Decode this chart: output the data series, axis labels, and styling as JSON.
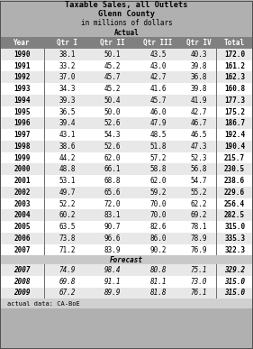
{
  "title_lines": [
    "Taxable Sales, all Outlets",
    "Glenn County",
    "in millions of dollars",
    "Actual"
  ],
  "header": [
    "Year",
    "Qtr I",
    "Qtr II",
    "Qtr III",
    "Qtr IV",
    "Total"
  ],
  "actual_data": [
    [
      "1990",
      "38.1",
      "50.1",
      "43.5",
      "40.3",
      "172.0"
    ],
    [
      "1991",
      "33.2",
      "45.2",
      "43.0",
      "39.8",
      "161.2"
    ],
    [
      "1992",
      "37.0",
      "45.7",
      "42.7",
      "36.8",
      "162.3"
    ],
    [
      "1993",
      "34.3",
      "45.2",
      "41.6",
      "39.8",
      "160.8"
    ],
    [
      "1994",
      "39.3",
      "50.4",
      "45.7",
      "41.9",
      "177.3"
    ],
    [
      "1995",
      "36.5",
      "50.0",
      "46.0",
      "42.7",
      "175.2"
    ],
    [
      "1996",
      "39.4",
      "52.6",
      "47.9",
      "46.7",
      "186.7"
    ],
    [
      "1997",
      "43.1",
      "54.3",
      "48.5",
      "46.5",
      "192.4"
    ],
    [
      "1998",
      "38.6",
      "52.6",
      "51.8",
      "47.3",
      "190.4"
    ],
    [
      "1999",
      "44.2",
      "62.0",
      "57.2",
      "52.3",
      "215.7"
    ],
    [
      "2000",
      "48.8",
      "66.1",
      "58.8",
      "56.8",
      "230.5"
    ],
    [
      "2001",
      "53.1",
      "68.8",
      "62.0",
      "54.7",
      "238.6"
    ],
    [
      "2002",
      "49.7",
      "65.6",
      "59.2",
      "55.2",
      "229.6"
    ],
    [
      "2003",
      "52.2",
      "72.0",
      "70.0",
      "62.2",
      "256.4"
    ],
    [
      "2004",
      "60.2",
      "83.1",
      "70.0",
      "69.2",
      "282.5"
    ],
    [
      "2005",
      "63.5",
      "90.7",
      "82.6",
      "78.1",
      "315.0"
    ],
    [
      "2006",
      "73.8",
      "96.6",
      "86.0",
      "78.9",
      "335.3"
    ],
    [
      "2007",
      "71.2",
      "83.9",
      "90.2",
      "76.9",
      "322.3"
    ]
  ],
  "forecast_label": "Forecast",
  "forecast_data": [
    [
      "2007",
      "74.9",
      "98.4",
      "80.8",
      "75.1",
      "329.2"
    ],
    [
      "2008",
      "69.8",
      "91.1",
      "81.1",
      "73.0",
      "315.0"
    ],
    [
      "2009",
      "67.2",
      "89.9",
      "81.8",
      "76.1",
      "315.0"
    ]
  ],
  "footer": "actual data: CA-BoE",
  "bg_header": "#b0b0b0",
  "bg_col_header": "#808080",
  "bg_row_odd": "#ffffff",
  "bg_row_even": "#e8e8e8",
  "bg_forecast_header": "#c8c8c8",
  "bg_forecast_odd": "#ffffff",
  "bg_forecast_even": "#e8e8e8",
  "bg_footer": "#d0d0d0"
}
